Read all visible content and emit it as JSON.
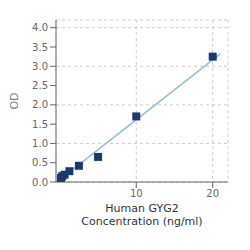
{
  "chart_data": {
    "type": "scatter",
    "xlabel": "Human GYG2\nConcentration (ng/ml)",
    "ylabel": "OD",
    "xlim": [
      -0.5,
      22
    ],
    "ylim": [
      0,
      4.2
    ],
    "xticks": [
      10,
      20
    ],
    "yticks": [
      {
        "value": 0,
        "label": "0.0"
      },
      0.5,
      {
        "value": 1.0,
        "label": "1.0"
      },
      1.5,
      {
        "value": 2.0,
        "label": "2.0"
      },
      2.5,
      {
        "value": 3.0,
        "label": "3.0"
      },
      3.5,
      {
        "value": 4.0,
        "label": "4.0"
      }
    ],
    "grid": true,
    "series": [
      {
        "type": "line",
        "color": "#92bdd4",
        "x": [
          0.0,
          21.0
        ],
        "values": [
          0.06,
          3.32
        ]
      },
      {
        "type": "scatter",
        "color": "#1a3a6e",
        "marker": "square",
        "x": [
          0.156,
          0.313,
          0.625,
          1.25,
          2.5,
          5,
          10,
          20
        ],
        "values": [
          0.105,
          0.15,
          0.19,
          0.28,
          0.42,
          0.65,
          1.7,
          3.25
        ]
      }
    ]
  }
}
